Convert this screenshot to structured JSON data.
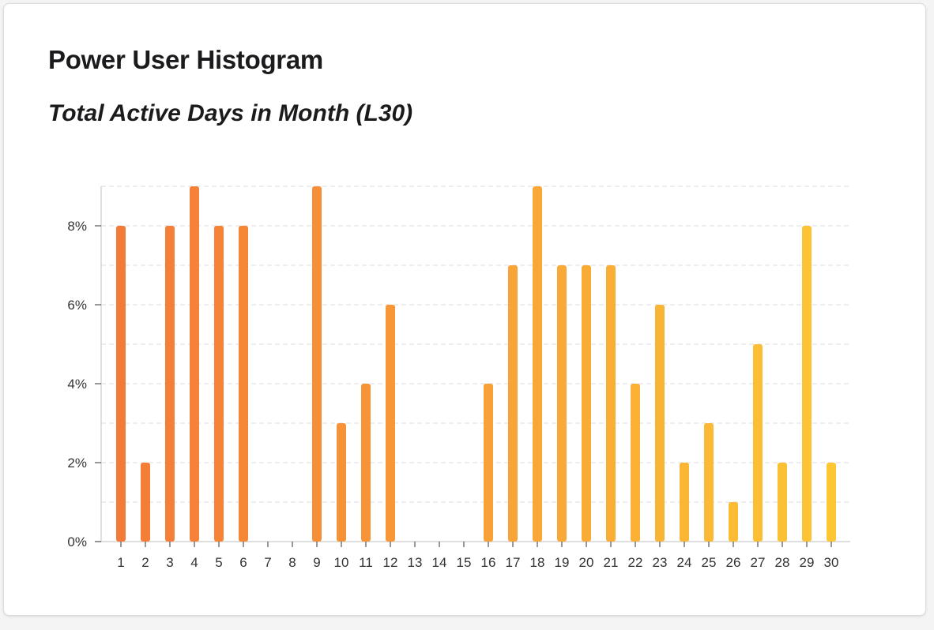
{
  "card": {
    "title": "Power User Histogram",
    "subtitle": "Total Active Days in Month (L30)"
  },
  "chart_data": {
    "type": "bar",
    "title": "Power User Histogram",
    "subtitle": "Total Active Days in Month (L30)",
    "xlabel": "",
    "ylabel": "",
    "categories": [
      "1",
      "2",
      "3",
      "4",
      "5",
      "6",
      "7",
      "8",
      "9",
      "10",
      "11",
      "12",
      "13",
      "14",
      "15",
      "16",
      "17",
      "18",
      "19",
      "20",
      "21",
      "22",
      "23",
      "24",
      "25",
      "26",
      "27",
      "28",
      "29",
      "30"
    ],
    "values": [
      8,
      2,
      8,
      9,
      8,
      8,
      0,
      0,
      9,
      3,
      4,
      6,
      0,
      0,
      0,
      4,
      7,
      9,
      7,
      7,
      7,
      4,
      6,
      2,
      3,
      1,
      5,
      2,
      8,
      2
    ],
    "value_unit": "%",
    "ylim": [
      0,
      9
    ],
    "y_ticks": [
      "0%",
      "2%",
      "4%",
      "6%",
      "8%"
    ],
    "y_tick_values": [
      0,
      2,
      4,
      6,
      8
    ],
    "grid": true,
    "gradient_colors": [
      "#f47a38",
      "#fcc634"
    ],
    "gridline_color": "#e3e3e8",
    "axis_color": "#cccccc"
  }
}
